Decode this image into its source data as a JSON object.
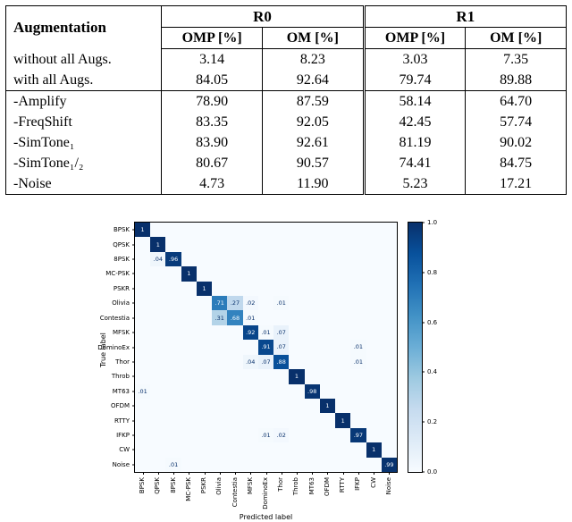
{
  "table": {
    "col1_header": "Augmentation",
    "group_headers": [
      "R0",
      "R1"
    ],
    "sub_headers": [
      "OMP [%]",
      "OM [%]",
      "OMP [%]",
      "OM [%]"
    ],
    "rows": [
      {
        "label": "without all Augs.",
        "values": [
          "3.14",
          "8.23",
          "3.03",
          "7.35"
        ]
      },
      {
        "label": "with all Augs.",
        "values": [
          "84.05",
          "92.64",
          "79.74",
          "89.88"
        ]
      },
      {
        "label": "-Amplify",
        "values": [
          "78.90",
          "87.59",
          "58.14",
          "64.70"
        ]
      },
      {
        "label": "-FreqShift",
        "values": [
          "83.35",
          "92.05",
          "42.45",
          "57.74"
        ]
      },
      {
        "label": "-SimTone₁",
        "values": [
          "83.90",
          "92.61",
          "81.19",
          "90.02"
        ]
      },
      {
        "label": "-SimTone₁/₂",
        "values": [
          "80.67",
          "90.57",
          "74.41",
          "84.75"
        ]
      },
      {
        "label": "-Noise",
        "values": [
          "4.73",
          "11.90",
          "5.23",
          "17.21"
        ]
      }
    ]
  },
  "chart_data": {
    "type": "heatmap",
    "title": "",
    "xlabel": "Predicted label",
    "ylabel": "True label",
    "colormap": "Blues",
    "colormap_min": "#f7fbff",
    "colormap_max": "#08306b",
    "labels": [
      "BPSK",
      "QPSK",
      "8PSK",
      "MC-PSK",
      "PSKR",
      "Olivia",
      "Contestia",
      "MFSK",
      "DominoEx",
      "Thor",
      "Throb",
      "MT63",
      "OFDM",
      "RTTY",
      "IFKP",
      "CW",
      "Noise"
    ],
    "matrix_cells": [
      {
        "row": "BPSK",
        "col": "BPSK",
        "value": 1
      },
      {
        "row": "QPSK",
        "col": "QPSK",
        "value": 1
      },
      {
        "row": "8PSK",
        "col": "QPSK",
        "value": 0.04
      },
      {
        "row": "8PSK",
        "col": "8PSK",
        "value": 0.96
      },
      {
        "row": "MC-PSK",
        "col": "MC-PSK",
        "value": 1
      },
      {
        "row": "PSKR",
        "col": "PSKR",
        "value": 1
      },
      {
        "row": "Olivia",
        "col": "Olivia",
        "value": 0.71
      },
      {
        "row": "Olivia",
        "col": "Contestia",
        "value": 0.27
      },
      {
        "row": "Olivia",
        "col": "MFSK",
        "value": 0.02
      },
      {
        "row": "Olivia",
        "col": "Thor",
        "value": 0.01
      },
      {
        "row": "Contestia",
        "col": "Olivia",
        "value": 0.31
      },
      {
        "row": "Contestia",
        "col": "Contestia",
        "value": 0.68
      },
      {
        "row": "Contestia",
        "col": "MFSK",
        "value": 0.01
      },
      {
        "row": "MFSK",
        "col": "MFSK",
        "value": 0.92
      },
      {
        "row": "MFSK",
        "col": "DominoEx",
        "value": 0.01
      },
      {
        "row": "MFSK",
        "col": "Thor",
        "value": 0.07
      },
      {
        "row": "DominoEx",
        "col": "DominoEx",
        "value": 0.91
      },
      {
        "row": "DominoEx",
        "col": "Thor",
        "value": 0.07
      },
      {
        "row": "DominoEx",
        "col": "IFKP",
        "value": 0.01
      },
      {
        "row": "Thor",
        "col": "MFSK",
        "value": 0.04
      },
      {
        "row": "Thor",
        "col": "DominoEx",
        "value": 0.07
      },
      {
        "row": "Thor",
        "col": "Thor",
        "value": 0.88
      },
      {
        "row": "Thor",
        "col": "IFKP",
        "value": 0.01
      },
      {
        "row": "Throb",
        "col": "Throb",
        "value": 1
      },
      {
        "row": "MT63",
        "col": "BPSK",
        "value": 0.01
      },
      {
        "row": "MT63",
        "col": "MT63",
        "value": 0.98
      },
      {
        "row": "OFDM",
        "col": "OFDM",
        "value": 1
      },
      {
        "row": "RTTY",
        "col": "RTTY",
        "value": 1
      },
      {
        "row": "IFKP",
        "col": "DominoEx",
        "value": 0.01
      },
      {
        "row": "IFKP",
        "col": "Thor",
        "value": 0.02
      },
      {
        "row": "IFKP",
        "col": "IFKP",
        "value": 0.97
      },
      {
        "row": "CW",
        "col": "CW",
        "value": 1
      },
      {
        "row": "Noise",
        "col": "8PSK",
        "value": 0.01
      },
      {
        "row": "Noise",
        "col": "Noise",
        "value": 0.99
      }
    ],
    "colorbar": {
      "min": 0.0,
      "max": 1.0,
      "ticks": [
        0.0,
        0.2,
        0.4,
        0.6,
        0.8,
        1.0
      ]
    }
  }
}
